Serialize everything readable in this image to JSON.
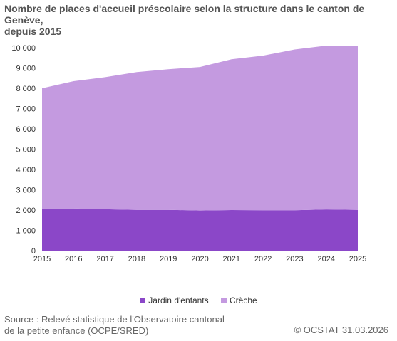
{
  "title_line1": "Nombre de places d'accueil préscolaire selon la structure dans le canton de Genève,",
  "title_line2": "depuis 2015",
  "legend": {
    "jardin": "Jardin d'enfants",
    "creche": "Crèche"
  },
  "source_line1": "Source : Relevé statistique de l'Observatoire cantonal",
  "source_line2": "de la petite enfance (OCPE/SRED)",
  "credit": "© OCSTAT 31.03.2026",
  "colors": {
    "jardin": "#8b47c8",
    "creche": "#c49ae0",
    "axis": "#cccccc"
  },
  "chart_data": {
    "type": "area",
    "stacked": true,
    "title": "Nombre de places d'accueil préscolaire selon la structure dans le canton de Genève, depuis 2015",
    "xlabel": "",
    "ylabel": "",
    "x": [
      "2015",
      "2016",
      "2017",
      "2018",
      "2019",
      "2020",
      "2021",
      "2022",
      "2023",
      "2024",
      "2025"
    ],
    "ylim": [
      0,
      10000
    ],
    "yticks": [
      0,
      1000,
      2000,
      3000,
      4000,
      5000,
      6000,
      7000,
      8000,
      9000,
      10000
    ],
    "ytick_labels": [
      "0",
      "1 000",
      "2 000",
      "3 000",
      "4 000",
      "5 000",
      "6 000",
      "7 000",
      "8 000",
      "9 000",
      "10 000"
    ],
    "grid": false,
    "legend_position": "bottom",
    "series": [
      {
        "name": "Jardin d'enfants",
        "values": [
          2080,
          2080,
          2040,
          2010,
          2010,
          1980,
          2000,
          1990,
          1990,
          2030,
          2010
        ]
      },
      {
        "name": "Crèche",
        "values": [
          5920,
          6270,
          6510,
          6790,
          6930,
          7070,
          7430,
          7620,
          7920,
          8070,
          8090
        ]
      }
    ]
  }
}
